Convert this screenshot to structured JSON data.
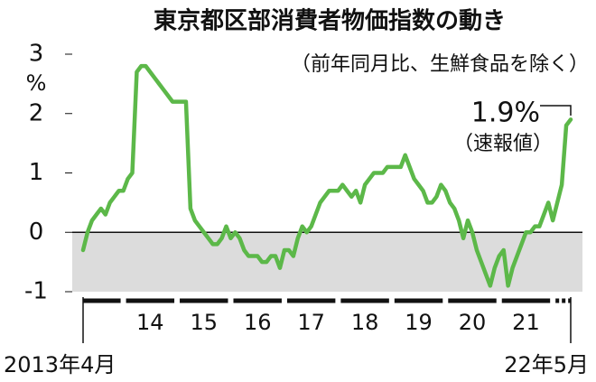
{
  "chart_data": {
    "type": "line",
    "title": "東京都区部消費者物価指数の動き",
    "subtitle": "（前年同月比、生鮮食品を除く）",
    "y_label": "%",
    "start_label": "2013年4月",
    "end_label": "22年5月",
    "year_labels": [
      "14",
      "15",
      "16",
      "17",
      "18",
      "19",
      "20",
      "21"
    ],
    "annotation": "1.9%",
    "annotation_note": "（速報値）",
    "color": "#5cb849",
    "ylim": [
      -1,
      3
    ],
    "yticks": [
      -1,
      0,
      1,
      2,
      3
    ],
    "values": [
      -0.3,
      0.0,
      0.2,
      0.3,
      0.4,
      0.3,
      0.5,
      0.6,
      0.7,
      0.7,
      0.9,
      1.0,
      2.7,
      2.8,
      2.8,
      2.7,
      2.6,
      2.5,
      2.4,
      2.3,
      2.2,
      2.2,
      2.2,
      2.2,
      0.4,
      0.2,
      0.1,
      0.0,
      -0.1,
      -0.2,
      -0.2,
      -0.1,
      0.1,
      -0.1,
      0.0,
      -0.1,
      -0.3,
      -0.4,
      -0.4,
      -0.4,
      -0.5,
      -0.5,
      -0.4,
      -0.4,
      -0.6,
      -0.3,
      -0.3,
      -0.4,
      -0.1,
      0.1,
      0.0,
      0.1,
      0.3,
      0.5,
      0.6,
      0.7,
      0.7,
      0.7,
      0.8,
      0.7,
      0.6,
      0.7,
      0.5,
      0.8,
      0.9,
      1.0,
      1.0,
      1.0,
      1.1,
      1.1,
      1.1,
      1.1,
      1.3,
      1.1,
      0.9,
      0.8,
      0.7,
      0.5,
      0.5,
      0.6,
      0.8,
      0.7,
      0.5,
      0.4,
      0.2,
      -0.1,
      0.2,
      0.0,
      -0.3,
      -0.5,
      -0.7,
      -0.9,
      -0.6,
      -0.4,
      -0.3,
      -0.9,
      -0.6,
      -0.4,
      -0.2,
      0.0,
      0.0,
      0.1,
      0.1,
      0.3,
      0.5,
      0.2,
      0.5,
      0.8,
      1.8,
      1.9
    ]
  }
}
